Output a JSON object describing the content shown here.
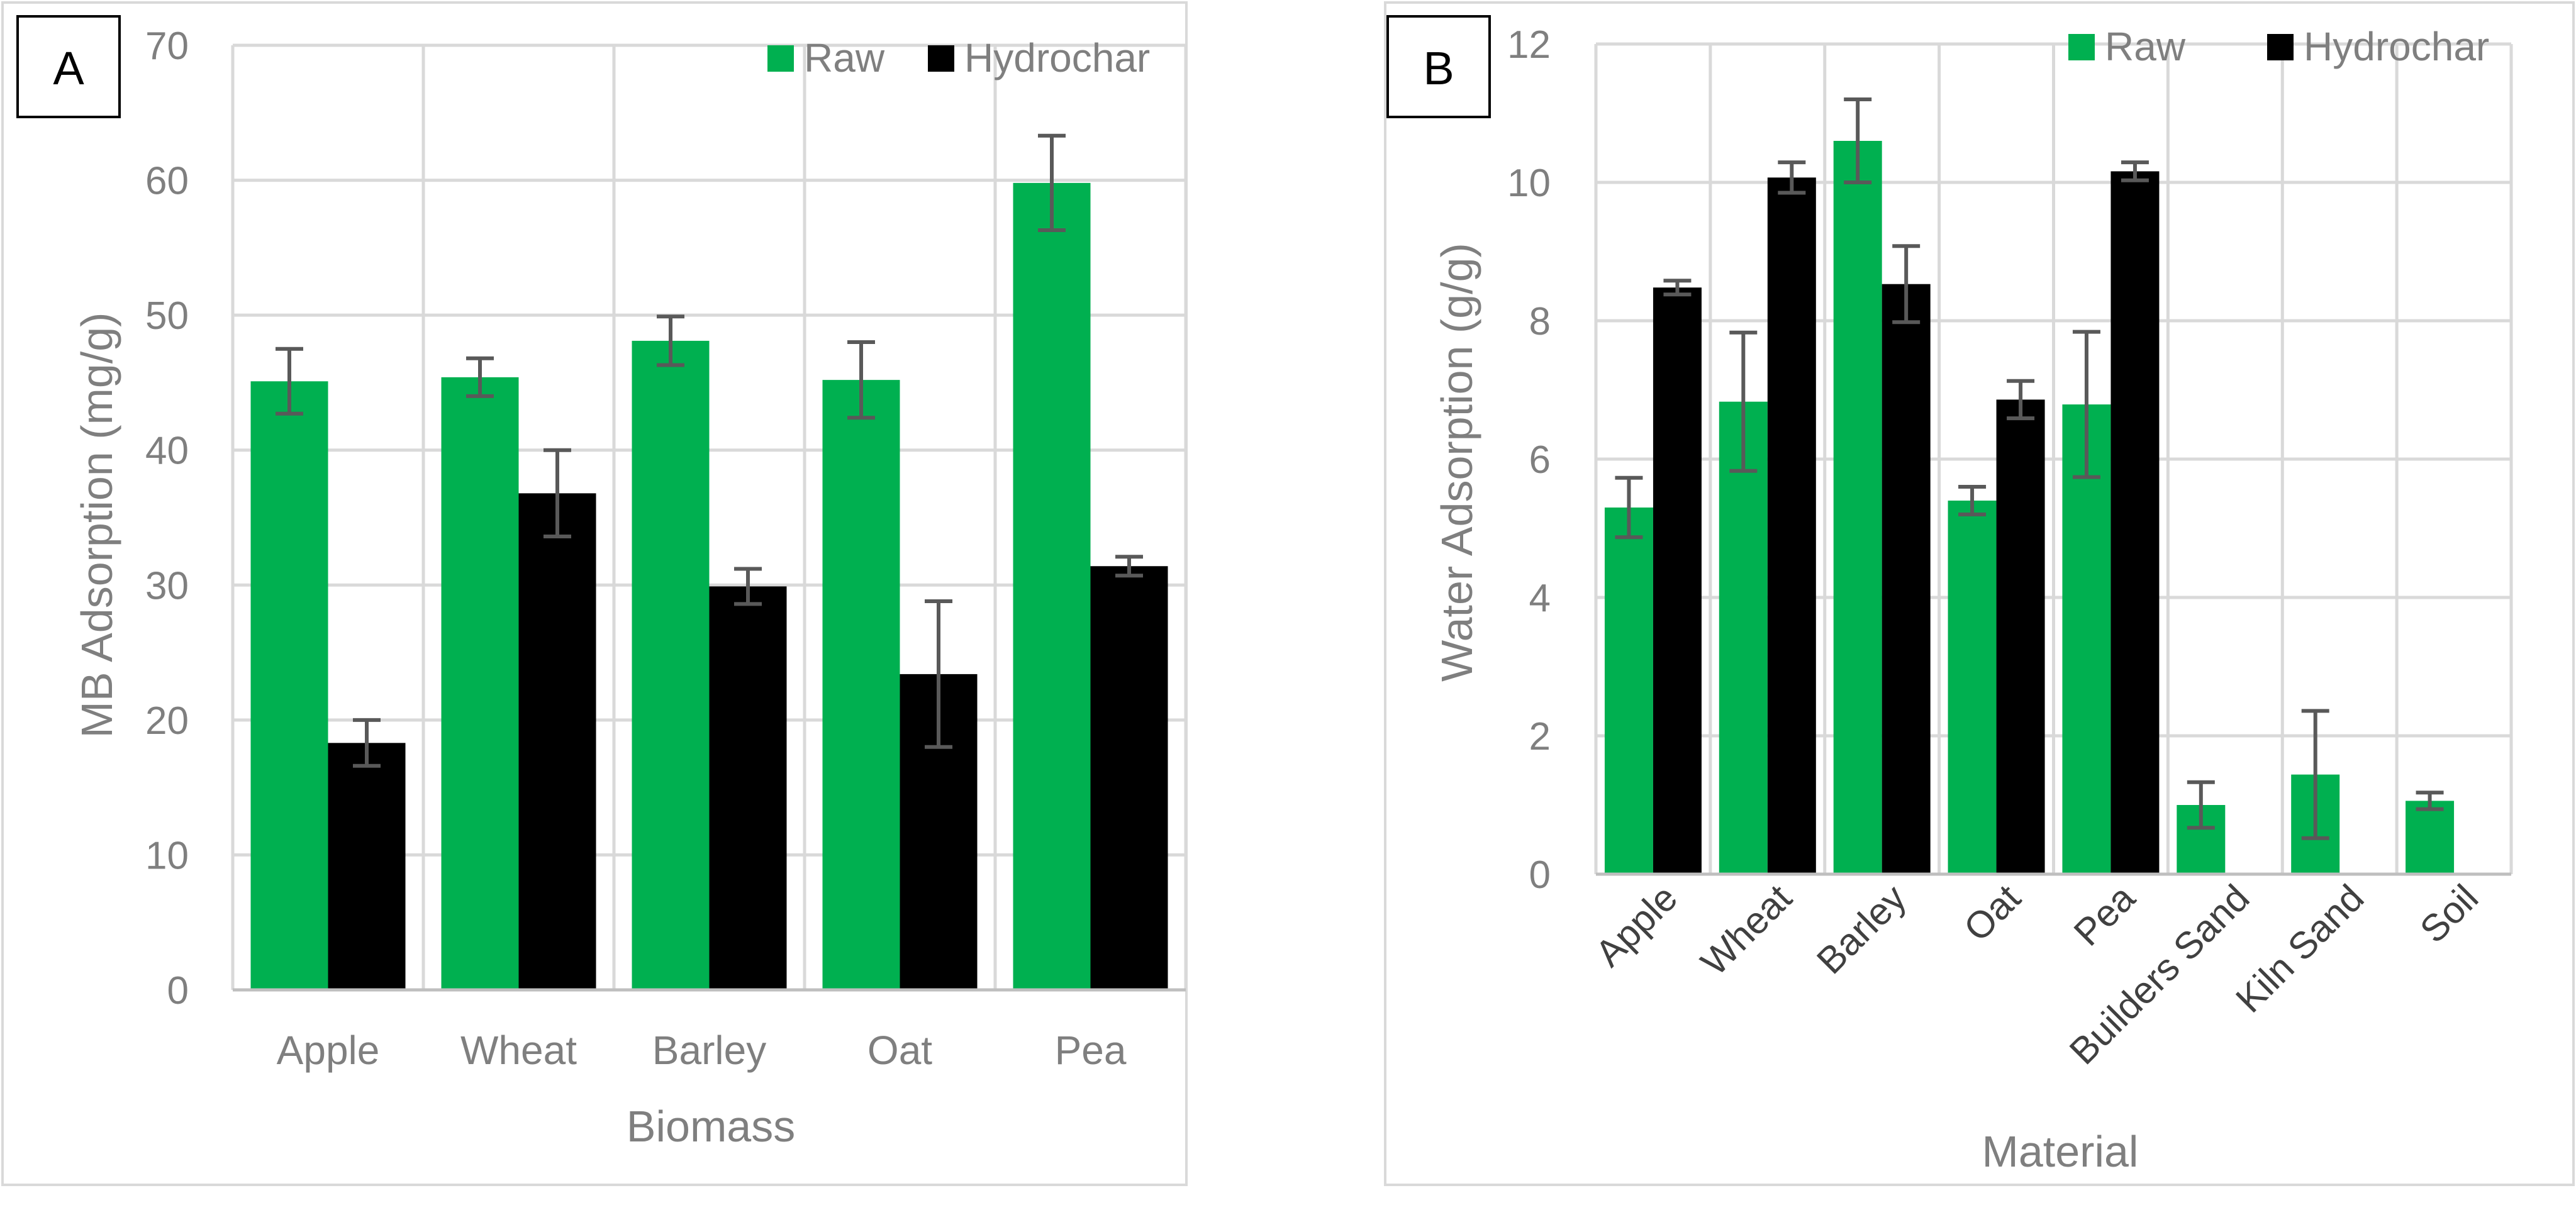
{
  "colors": {
    "raw": "#00b050",
    "hydrochar": "#000000"
  },
  "chart_data": [
    {
      "panel_label": "A",
      "type": "bar",
      "categories": [
        "Apple",
        "Wheat",
        "Barley",
        "Oat",
        "Pea"
      ],
      "series": [
        {
          "name": "Raw",
          "values": [
            45.1,
            45.4,
            48.1,
            45.2,
            59.8
          ],
          "errors": [
            2.4,
            1.4,
            1.8,
            2.8,
            3.5
          ]
        },
        {
          "name": "Hydrochar",
          "values": [
            18.3,
            36.8,
            29.9,
            23.4,
            31.4
          ],
          "errors": [
            1.7,
            3.2,
            1.3,
            5.4,
            0.7
          ]
        }
      ],
      "xlabel": "Biomass",
      "ylabel": "MB Adsorption (mg/g)",
      "ylim": [
        0,
        70
      ],
      "yticks": [
        "0",
        "10",
        "20",
        "30",
        "40",
        "50",
        "60",
        "70"
      ],
      "grid": true,
      "legend_position": "top-right"
    },
    {
      "panel_label": "B",
      "type": "bar",
      "categories": [
        "Apple",
        "Wheat",
        "Barley",
        "Oat",
        "Pea",
        "Builders Sand",
        "Kiln Sand",
        "Soil"
      ],
      "series": [
        {
          "name": "Raw",
          "values": [
            5.3,
            6.83,
            10.6,
            5.4,
            6.79,
            1.0,
            1.44,
            1.06
          ],
          "errors": [
            0.43,
            1.0,
            0.6,
            0.2,
            1.05,
            0.33,
            0.92,
            0.12
          ]
        },
        {
          "name": "Hydrochar",
          "values": [
            8.48,
            10.07,
            8.53,
            6.86,
            10.16,
            null,
            null,
            null
          ],
          "errors": [
            0.1,
            0.22,
            0.55,
            0.27,
            0.13,
            null,
            null,
            null
          ]
        }
      ],
      "xlabel": "Material",
      "ylabel": "Water Adsorption (g/g)",
      "ylim": [
        0,
        12
      ],
      "yticks": [
        "0",
        "2",
        "4",
        "6",
        "8",
        "10",
        "12"
      ],
      "grid": true,
      "legend_position": "top-right"
    }
  ]
}
